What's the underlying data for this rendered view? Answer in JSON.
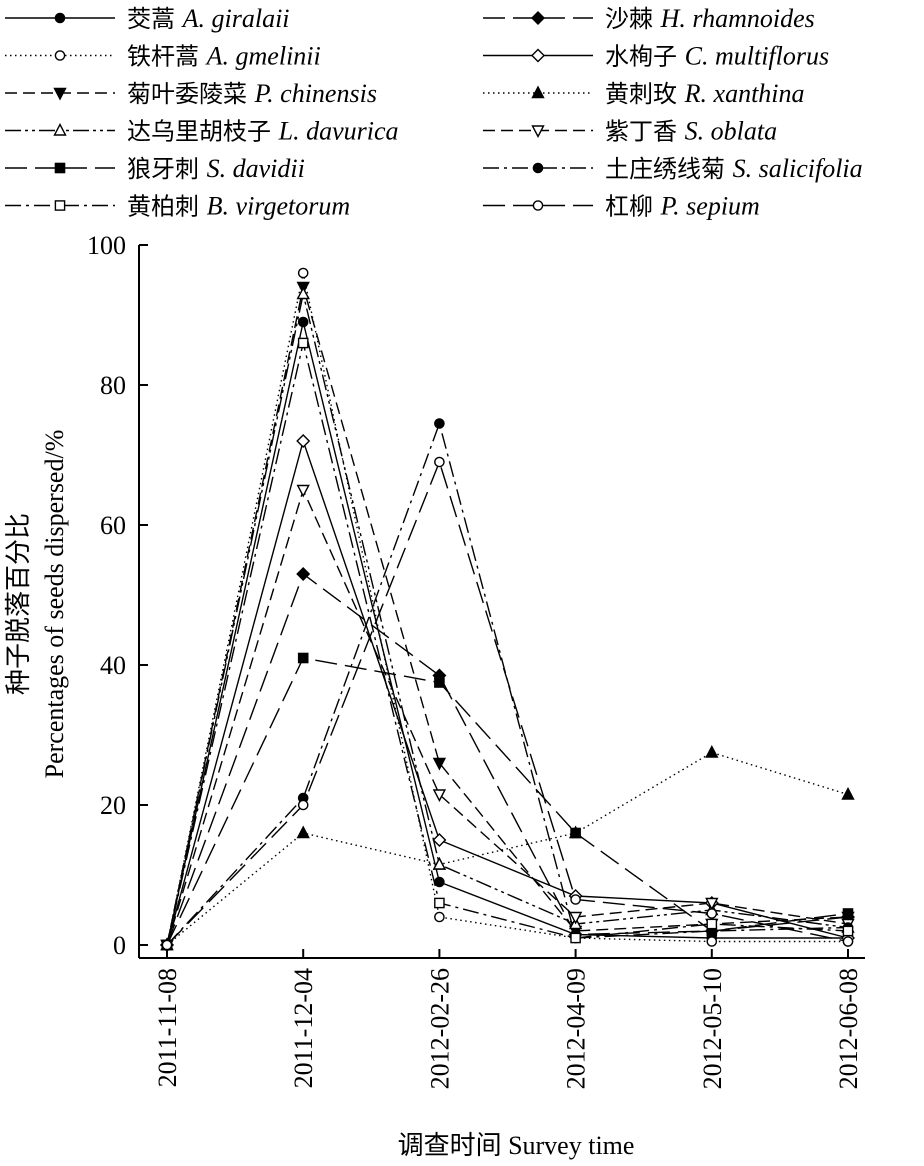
{
  "chart_data": {
    "type": "line",
    "x": [
      "2011-11-08",
      "2011-12-04",
      "2012-02-26",
      "2012-04-09",
      "2012-05-10",
      "2012-06-08"
    ],
    "xlabel": "调查时间 Survey time",
    "ylabel_cn": "种子脱落百分比",
    "ylabel_en": "Percentages of seeds dispersed/%",
    "ylim": [
      0,
      100
    ],
    "yticks": [
      0,
      20,
      40,
      60,
      80,
      100
    ],
    "grid": false,
    "legend_position": "top",
    "series": [
      {
        "cn": "茭蒿",
        "sci": "A. giralaii",
        "values": [
          0,
          89,
          9,
          1.5,
          1,
          1
        ],
        "style": "solid",
        "marker": "circle-filled"
      },
      {
        "cn": "沙棘",
        "sci": "H. rhamnoides",
        "values": [
          0,
          53,
          38.5,
          1.5,
          2,
          4
        ],
        "style": "longdash",
        "marker": "diamond-filled"
      },
      {
        "cn": "铁杆蒿",
        "sci": "A. gmelinii",
        "values": [
          0,
          96,
          4,
          1,
          0.5,
          0.5
        ],
        "style": "dotted",
        "marker": "circle-open"
      },
      {
        "cn": "水栒子",
        "sci": "C. multiflorus",
        "values": [
          0,
          72,
          15,
          7,
          6,
          1
        ],
        "style": "solid",
        "marker": "diamond-open"
      },
      {
        "cn": "菊叶委陵菜",
        "sci": "P. chinensis",
        "values": [
          0,
          94,
          26,
          2,
          3,
          4
        ],
        "style": "dash",
        "marker": "triangle-down-filled"
      },
      {
        "cn": "黄刺玫",
        "sci": "R. xanthina",
        "values": [
          0,
          16,
          11.5,
          16,
          27.5,
          21.5
        ],
        "style": "dotted",
        "marker": "triangle-up-filled"
      },
      {
        "cn": "达乌里胡枝子",
        "sci": "L. davurica",
        "values": [
          0,
          93,
          11.5,
          3,
          5,
          2.5
        ],
        "style": "dashdotdot",
        "marker": "triangle-up-open"
      },
      {
        "cn": "紫丁香",
        "sci": "S. oblata",
        "values": [
          0,
          65,
          21.5,
          4,
          6,
          3
        ],
        "style": "dash",
        "marker": "triangle-down-open"
      },
      {
        "cn": "狼牙刺",
        "sci": "S. davidii",
        "values": [
          0,
          41,
          37.5,
          16,
          2,
          4.5
        ],
        "style": "longdash",
        "marker": "square-filled"
      },
      {
        "cn": "土庄绣线菊",
        "sci": "S. salicifolia",
        "values": [
          0,
          21,
          74.5,
          1,
          2,
          2.5
        ],
        "style": "dashdot",
        "marker": "circle-filled"
      },
      {
        "cn": "黄柏刺",
        "sci": "B. virgetorum",
        "values": [
          0,
          86,
          6,
          1,
          3,
          2
        ],
        "style": "dashdot",
        "marker": "square-open"
      },
      {
        "cn": "杠柳",
        "sci": "P. sepium",
        "values": [
          0,
          20,
          69,
          6.5,
          4.5,
          0.5
        ],
        "style": "longdash",
        "marker": "circle-open"
      }
    ]
  }
}
